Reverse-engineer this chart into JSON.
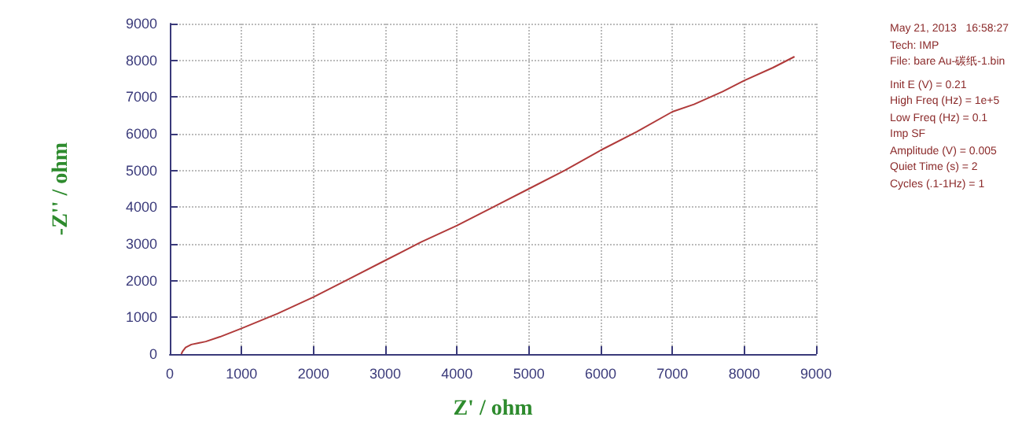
{
  "chart_data": {
    "type": "line",
    "xlabel": "Z' / ohm",
    "ylabel": "-Z'' / ohm",
    "x": [
      160,
      180,
      220,
      300,
      400,
      500,
      700,
      1000,
      1500,
      2000,
      2500,
      3000,
      3500,
      4000,
      4500,
      5000,
      5500,
      6000,
      6500,
      7000,
      7300,
      7700,
      8000,
      8400,
      8700
    ],
    "series": [
      {
        "color": "#b03a3a",
        "values": [
          0,
          80,
          180,
          260,
          300,
          340,
          470,
          700,
          1100,
          1550,
          2050,
          2550,
          3050,
          3500,
          4000,
          4500,
          5000,
          5550,
          6050,
          6600,
          6800,
          7150,
          7450,
          7800,
          8100
        ]
      }
    ],
    "xlim": [
      0,
      9000
    ],
    "xticks": [
      0,
      1000,
      2000,
      3000,
      4000,
      5000,
      6000,
      7000,
      8000,
      9000
    ],
    "ylim": [
      0,
      9000
    ],
    "yticks": [
      0,
      1000,
      2000,
      3000,
      4000,
      5000,
      6000,
      7000,
      8000,
      9000
    ],
    "grid": true,
    "marker": "none",
    "line_style": "solid",
    "annotations": [
      "May 21, 2013   16:58:27",
      "Tech: IMP",
      "File: bare Au-碳纸-1.bin",
      "Init E (V) = 0.21",
      "High Freq (Hz) = 1e+5",
      "Low Freq (Hz) = 0.1",
      "Imp SF",
      "Amplitude (V) = 0.005",
      "Quiet Time (s) = 2",
      "Cycles (.1-1Hz) = 1"
    ]
  }
}
